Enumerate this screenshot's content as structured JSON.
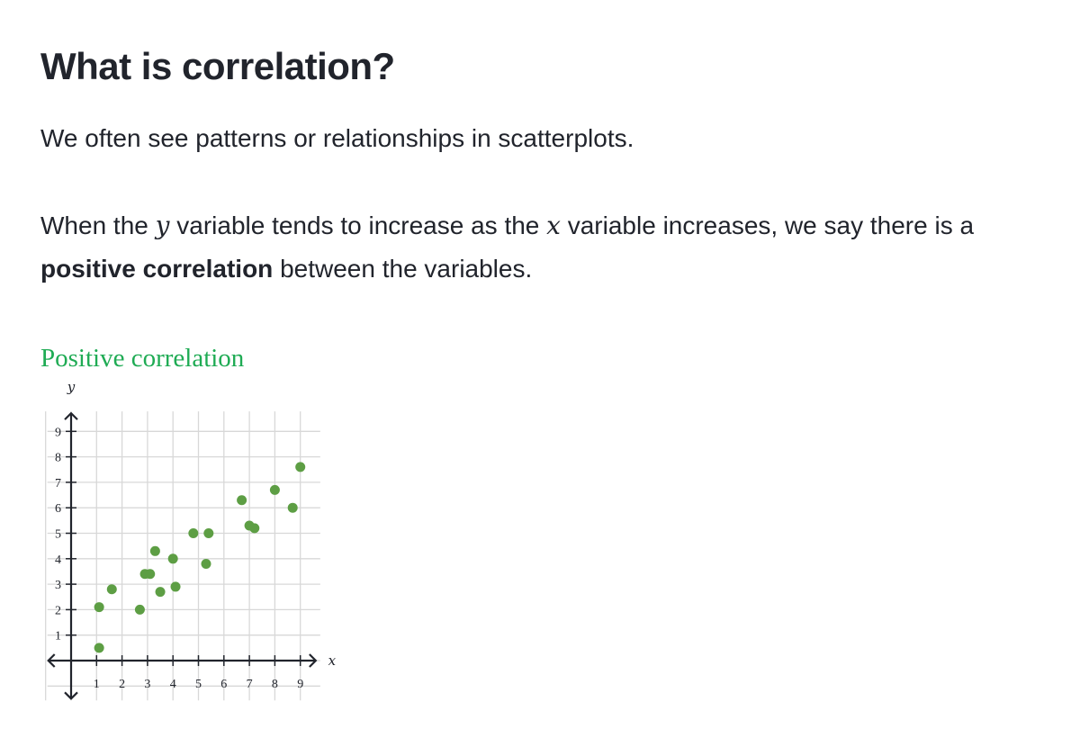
{
  "heading": "What is correlation?",
  "intro": "We often see patterns or relationships in scatterplots.",
  "definition": {
    "part1": "When the ",
    "y_var": "y",
    "part2": " variable tends to increase as the ",
    "x_var": "x",
    "part3": " variable increases, we say there is a ",
    "term": "positive correlation",
    "part4": " between the variables."
  },
  "chart_data": {
    "type": "scatter",
    "title": "Positive correlation",
    "xlabel": "x",
    "ylabel": "y",
    "xlim": [
      -1,
      9.5
    ],
    "ylim": [
      -1,
      9.5
    ],
    "x_ticks": [
      1,
      2,
      3,
      4,
      5,
      6,
      7,
      8,
      9
    ],
    "y_ticks": [
      1,
      2,
      3,
      4,
      5,
      6,
      7,
      8,
      9
    ],
    "grid": true,
    "point_color": "#5d9e44",
    "series": [
      {
        "x": [
          1.1,
          1.1,
          1.6,
          2.7,
          2.9,
          3.1,
          3.3,
          3.5,
          4.0,
          4.1,
          4.8,
          5.3,
          5.4,
          6.7,
          7.0,
          7.2,
          8.0,
          8.7,
          9.0
        ],
        "y": [
          0.5,
          2.1,
          2.8,
          2.0,
          3.4,
          3.4,
          4.3,
          2.7,
          4.0,
          2.9,
          5.0,
          3.8,
          5.0,
          6.3,
          5.3,
          5.2,
          6.7,
          6.0,
          7.6
        ]
      }
    ]
  }
}
